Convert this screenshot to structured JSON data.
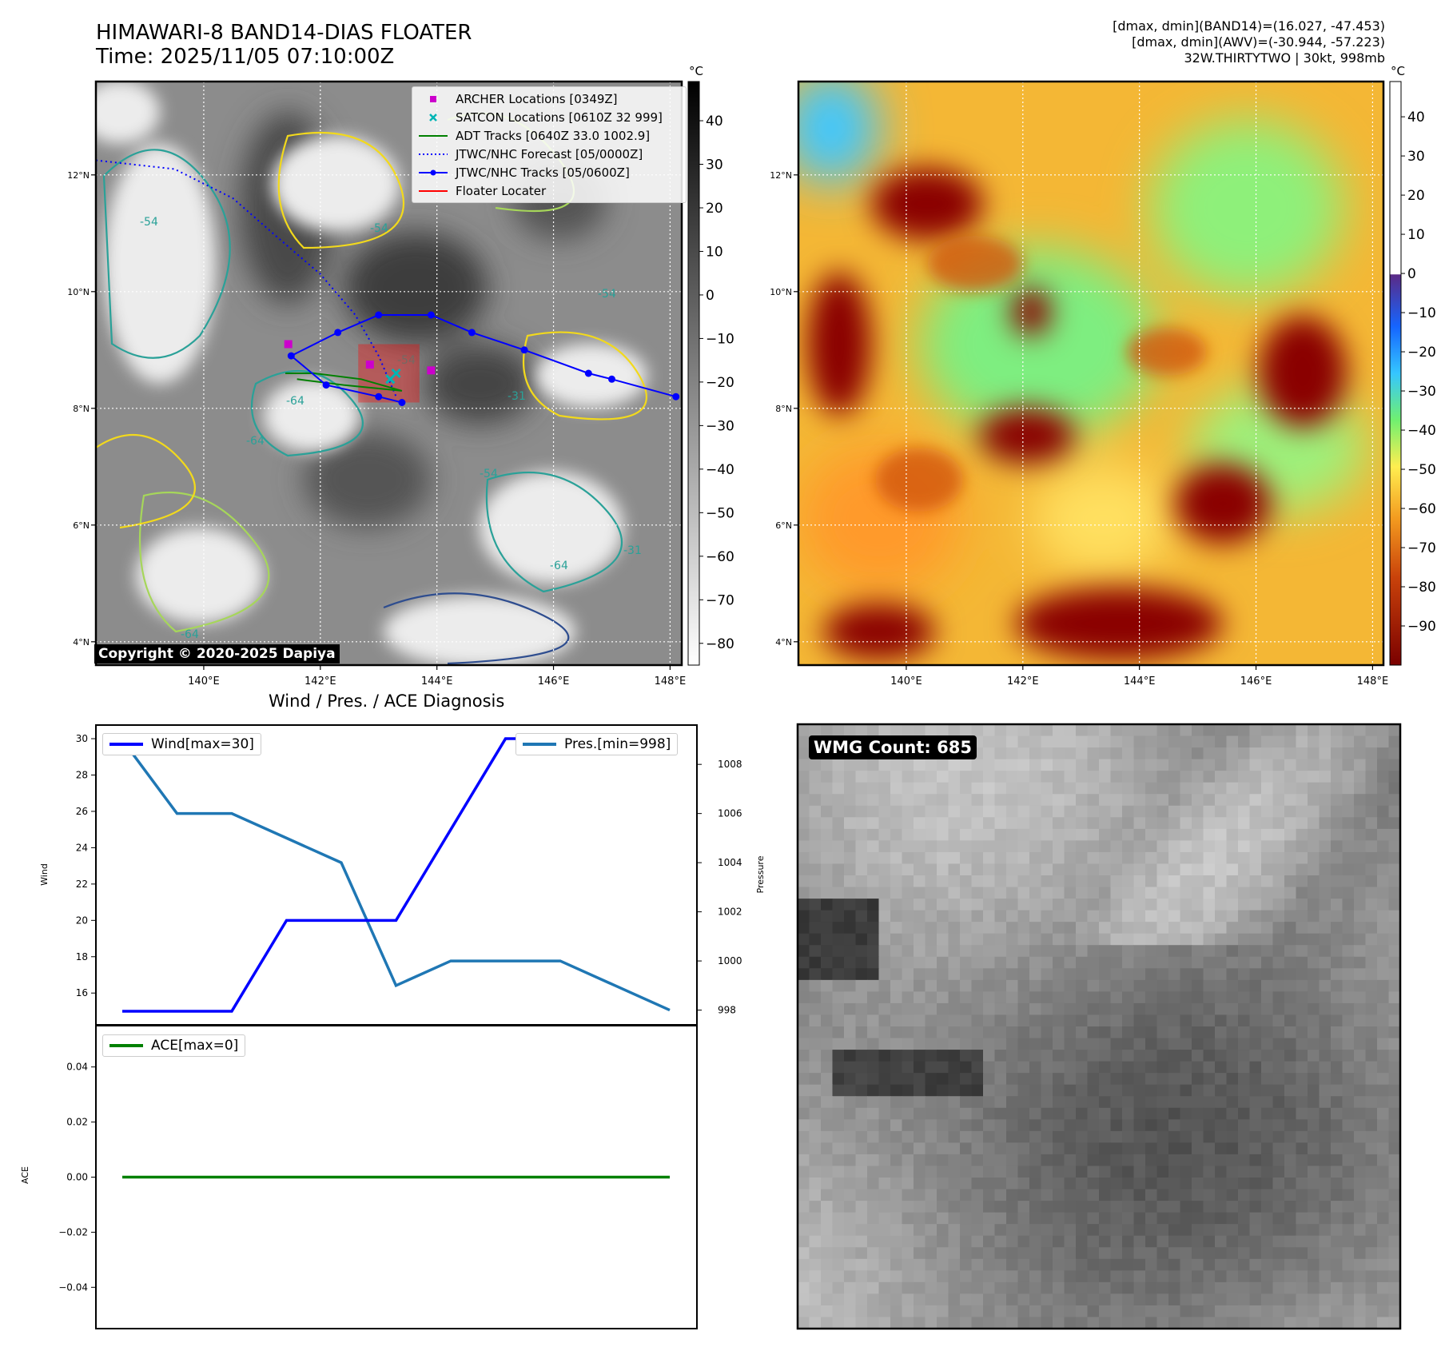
{
  "header": {
    "title_line1": "HIMAWARI-8 BAND14-DIAS FLOATER",
    "title_line2": "Time: 2025/11/05 07:10:00Z",
    "stat_line1": "[dmax, dmin](BAND14)=(16.027, -47.453)",
    "stat_line2": "[dmax, dmin](AWV)=(-30.944, -57.223)",
    "stat_line3": "32W.THIRTYTWO | 30kt, 998mb"
  },
  "map_axes": {
    "lon_labels": [
      "140°E",
      "142°E",
      "144°E",
      "146°E",
      "148°E"
    ],
    "lat_labels": [
      "12°N",
      "10°N",
      "8°N",
      "6°N",
      "4°N"
    ],
    "lon_range": [
      138.15,
      148.2
    ],
    "lat_range": [
      3.6,
      13.6
    ]
  },
  "left_map": {
    "colorbar_unit": "°C",
    "colorbar_ticks": [
      "40",
      "30",
      "20",
      "10",
      "0",
      "−10",
      "−20",
      "−30",
      "−40",
      "−50",
      "−60",
      "−70",
      "−80"
    ],
    "colorbar_range": [
      -85,
      49
    ],
    "copyright": "Copyright © 2020-2025 Dapiya",
    "contour_labels": [
      "-54",
      "-64",
      "-54",
      "-54",
      "-64",
      "-54",
      "-64",
      "-31",
      "-31",
      "-54",
      "-64"
    ],
    "legend": [
      {
        "label": "ARCHER Locations [0349Z]",
        "color": "#cc00cc",
        "symbol": "square"
      },
      {
        "label": "SATCON Locations [0610Z 32 999]",
        "color": "#00b5b5",
        "symbol": "x"
      },
      {
        "label": "ADT Tracks [0640Z 33.0 1002.9]",
        "color": "#008000",
        "symbol": "line"
      },
      {
        "label": "JTWC/NHC Forecast [05/0000Z]",
        "color": "#0000ff",
        "symbol": "dotted"
      },
      {
        "label": "JTWC/NHC Tracks [05/0600Z]",
        "color": "#0000ff",
        "symbol": "line-dot"
      },
      {
        "label": "Floater Locater",
        "color": "#ff0000",
        "symbol": "line"
      }
    ],
    "tracks": {
      "jtwc_forecast": [
        [
          138.15,
          12.25
        ],
        [
          139.5,
          12.1
        ],
        [
          140.5,
          11.6
        ],
        [
          141.3,
          10.9
        ],
        [
          142.0,
          10.3
        ],
        [
          142.6,
          9.6
        ],
        [
          143.0,
          8.9
        ],
        [
          143.3,
          8.2
        ]
      ],
      "jtwc_tracks": [
        [
          148.1,
          8.2
        ],
        [
          147.0,
          8.5
        ],
        [
          146.6,
          8.6
        ],
        [
          145.5,
          9.0
        ],
        [
          144.6,
          9.3
        ],
        [
          143.9,
          9.6
        ],
        [
          143.0,
          9.6
        ],
        [
          142.3,
          9.3
        ],
        [
          141.5,
          8.9
        ],
        [
          142.1,
          8.4
        ],
        [
          143.0,
          8.2
        ],
        [
          143.4,
          8.1
        ]
      ],
      "adt": [
        [
          141.4,
          8.6
        ],
        [
          141.9,
          8.6
        ],
        [
          142.7,
          8.5
        ],
        [
          143.4,
          8.3
        ],
        [
          142.4,
          8.4
        ],
        [
          141.6,
          8.5
        ]
      ],
      "archer": [
        [
          141.45,
          9.1
        ],
        [
          142.85,
          8.75
        ],
        [
          143.9,
          8.65
        ]
      ],
      "satcon": [
        [
          143.3,
          8.6
        ],
        [
          143.2,
          8.5
        ]
      ],
      "floater_box": {
        "lon": [
          142.65,
          143.7
        ],
        "lat": [
          8.1,
          9.1
        ]
      }
    }
  },
  "right_map": {
    "colorbar_unit": "°C",
    "colorbar_ticks": [
      "40",
      "30",
      "20",
      "10",
      "0",
      "−10",
      "−20",
      "−30",
      "−40",
      "−50",
      "−60",
      "−70",
      "−80",
      "−90"
    ],
    "colorbar_range": [
      -100,
      49
    ]
  },
  "chart_data": [
    {
      "type": "line",
      "title": "Wind / Pres. / ACE Diagnosis",
      "x": [
        0,
        1,
        2,
        3,
        4,
        5,
        6,
        7,
        8,
        9,
        10
      ],
      "series": [
        {
          "name": "Wind[max=30]",
          "axis": "left",
          "color": "#0000ff",
          "values": [
            15,
            15,
            15,
            20,
            20,
            20,
            25,
            30,
            30,
            30,
            30
          ]
        },
        {
          "name": "Pres.[min=998]",
          "axis": "right",
          "color": "#1f77b4",
          "values": [
            1009,
            1006,
            1006,
            1005,
            1004,
            999,
            1000,
            1000,
            1000,
            999,
            998
          ]
        }
      ],
      "ylabel": "Wind",
      "ylabel_right": "Pressure",
      "ylim": [
        14.25,
        30.75
      ],
      "ylim_right": [
        997.4,
        1009.6
      ],
      "yticks": [
        "30",
        "28",
        "26",
        "24",
        "22",
        "20",
        "18",
        "16"
      ],
      "yticks_right": [
        "1008",
        "1006",
        "1004",
        "1002",
        "1000",
        "998"
      ]
    },
    {
      "type": "line",
      "x": [
        0,
        1,
        2,
        3,
        4,
        5,
        6,
        7,
        8,
        9,
        10
      ],
      "series": [
        {
          "name": "ACE[max=0]",
          "color": "#008000",
          "values": [
            0,
            0,
            0,
            0,
            0,
            0,
            0,
            0,
            0,
            0,
            0
          ]
        }
      ],
      "ylabel": "ACE",
      "ylim": [
        -0.055,
        0.055
      ],
      "yticks": [
        "0.04",
        "0.02",
        "0.00",
        "−0.02",
        "−0.04"
      ]
    }
  ],
  "wmg": {
    "badge": "WMG Count: 685"
  }
}
